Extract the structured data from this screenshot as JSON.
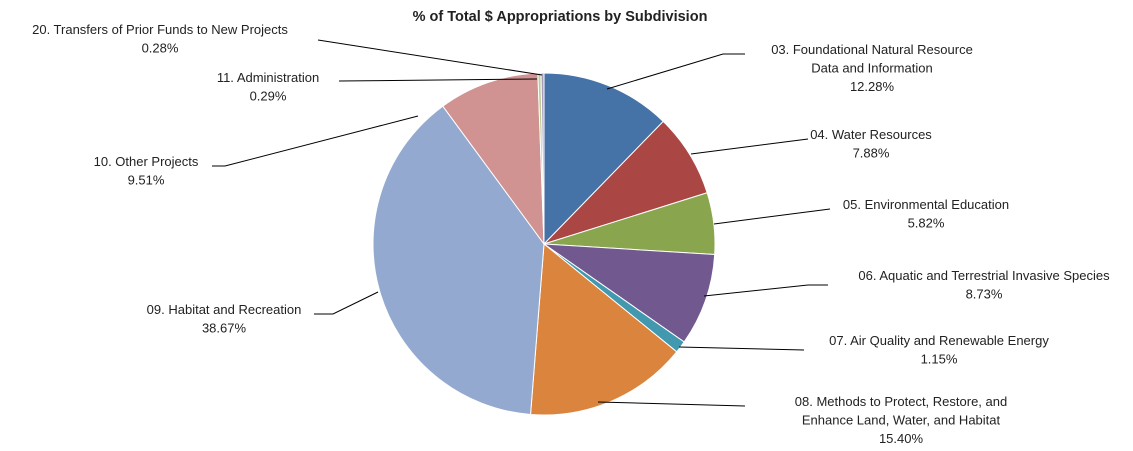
{
  "chart_data": {
    "type": "pie",
    "title": "% of Total $ Appropriations by Subdivision",
    "legend": "none",
    "slices": [
      {
        "name": "03. Foundational Natural Resource Data and Information",
        "lines": [
          "03. Foundational Natural Resource",
          "Data and Information"
        ],
        "value": 12.28,
        "label": "12.28%",
        "color": "#4572A7"
      },
      {
        "name": "04. Water Resources",
        "lines": [
          "04. Water Resources"
        ],
        "value": 7.88,
        "label": "7.88%",
        "color": "#AA4643"
      },
      {
        "name": "05. Environmental Education",
        "lines": [
          "05. Environmental Education"
        ],
        "value": 5.82,
        "label": "5.82%",
        "color": "#89A54E"
      },
      {
        "name": "06. Aquatic and Terrestrial Invasive Species",
        "lines": [
          "06. Aquatic and Terrestrial Invasive Species"
        ],
        "value": 8.73,
        "label": "8.73%",
        "color": "#71588F"
      },
      {
        "name": "07. Air Quality and Renewable Energy",
        "lines": [
          "07. Air Quality and Renewable Energy"
        ],
        "value": 1.15,
        "label": "1.15%",
        "color": "#4198AF"
      },
      {
        "name": "08. Methods to Protect, Restore, and Enhance Land, Water, and Habitat",
        "lines": [
          "08. Methods to Protect, Restore, and",
          "Enhance Land, Water, and Habitat"
        ],
        "value": 15.4,
        "label": "15.40%",
        "color": "#DB843D"
      },
      {
        "name": "09. Habitat and Recreation",
        "lines": [
          "09. Habitat and Recreation"
        ],
        "value": 38.67,
        "label": "38.67%",
        "color": "#93A9CF"
      },
      {
        "name": "10. Other Projects",
        "lines": [
          "10. Other Projects"
        ],
        "value": 9.51,
        "label": "9.51%",
        "color": "#D19392"
      },
      {
        "name": "11. Administration",
        "lines": [
          "11. Administration"
        ],
        "value": 0.29,
        "label": "0.29%",
        "color": "#B9CD96"
      },
      {
        "name": "20. Transfers of Prior Funds to New Projects",
        "lines": [
          "20. Transfers of Prior Funds to New Projects"
        ],
        "value": 0.28,
        "label": "0.28%",
        "color": "#A99BBD"
      }
    ]
  }
}
